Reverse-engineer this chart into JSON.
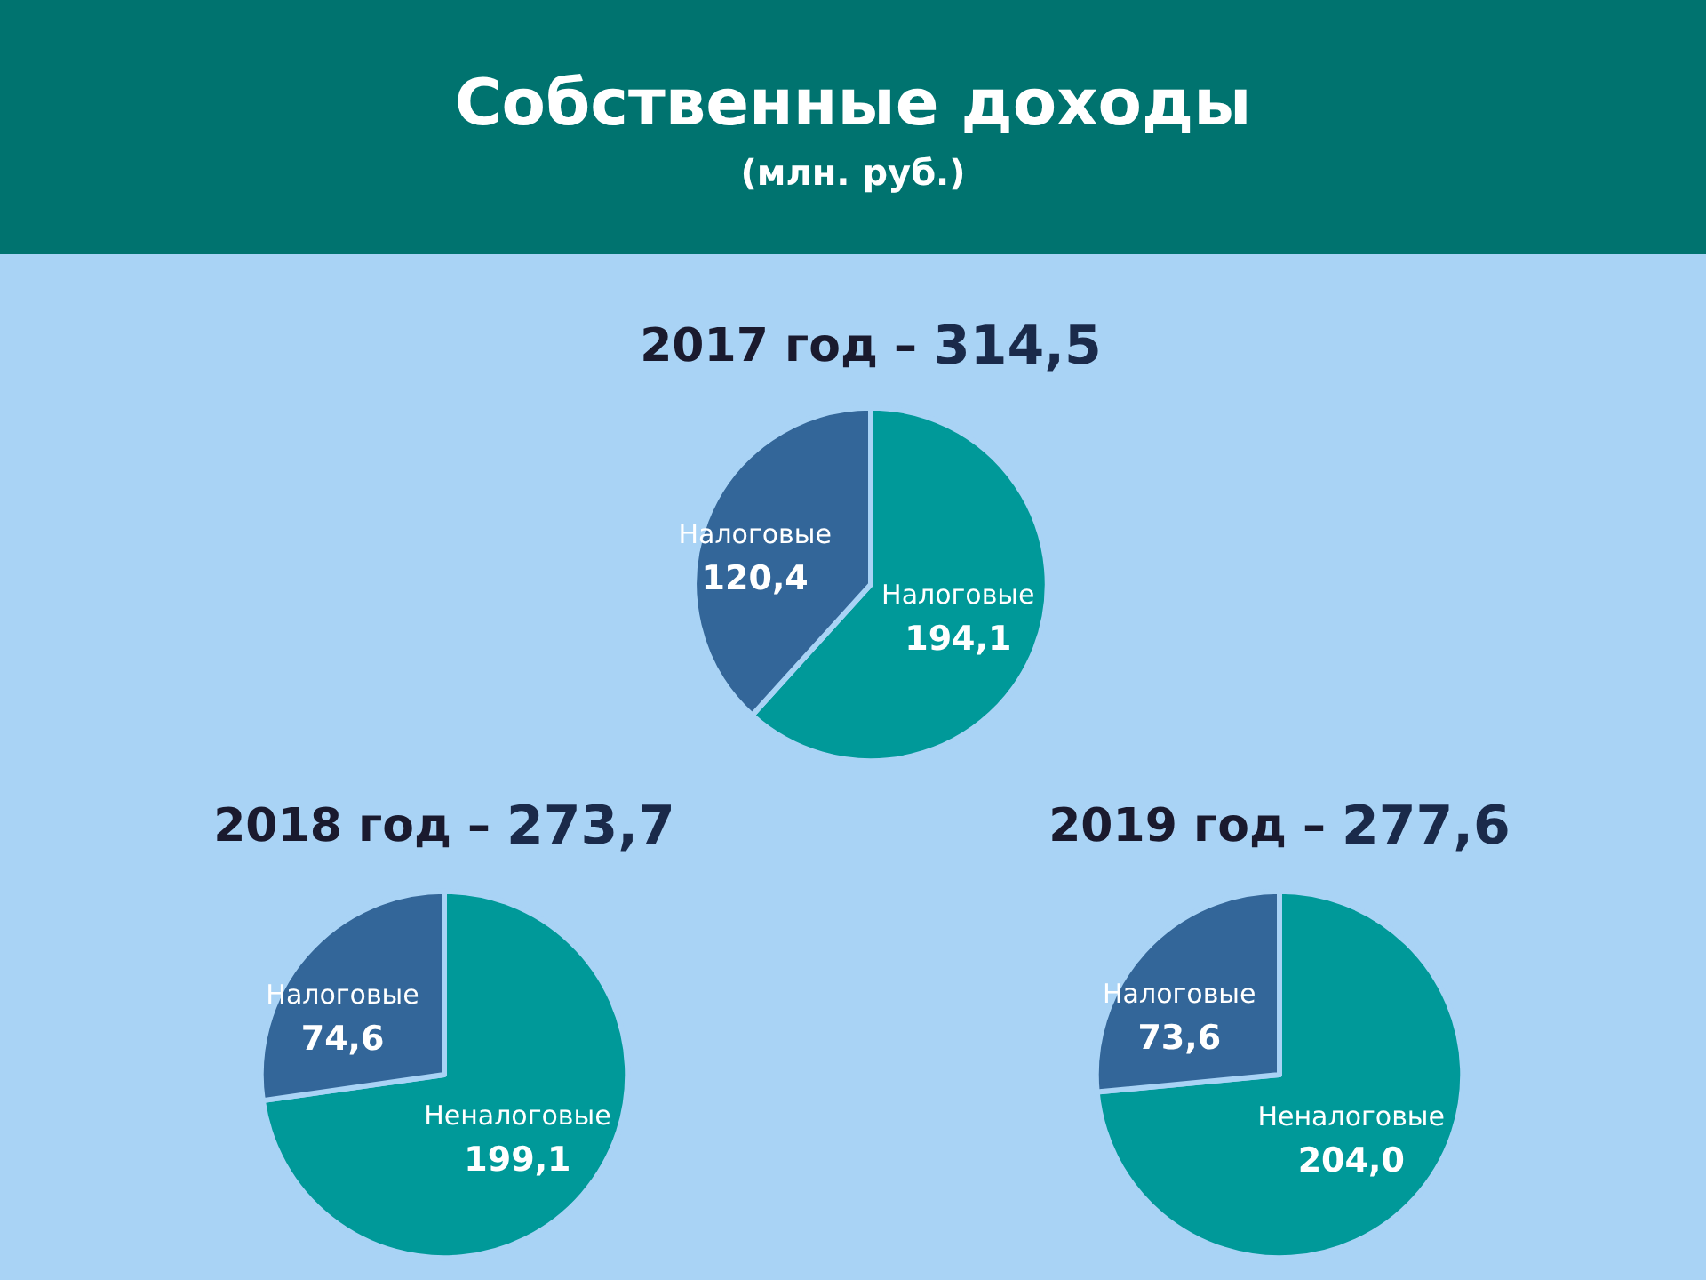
{
  "chart_data": [
    {
      "type": "other",
      "title": "Собственные доходы",
      "subtitle": "(млн. руб.)"
    },
    {
      "type": "pie",
      "title": "2017 год – 314,5",
      "categories": [
        "Налоговые",
        "Налоговые"
      ],
      "values": [
        194.1,
        120.4
      ],
      "value_labels": [
        "194,1",
        "120,4"
      ],
      "colors": [
        "#009999",
        "#336699"
      ]
    },
    {
      "type": "pie",
      "title": "2018 год – 273,7",
      "categories": [
        "Неналоговые",
        "Налоговые"
      ],
      "values": [
        199.1,
        74.6
      ],
      "value_labels": [
        "199,1",
        "74,6"
      ],
      "colors": [
        "#009999",
        "#336699"
      ]
    },
    {
      "type": "pie",
      "title": "2019 год – 277,6",
      "categories": [
        "Неналоговые",
        "Налоговые"
      ],
      "values": [
        204.0,
        73.6
      ],
      "value_labels": [
        "204,0",
        "73,6"
      ],
      "colors": [
        "#009999",
        "#336699"
      ]
    }
  ]
}
